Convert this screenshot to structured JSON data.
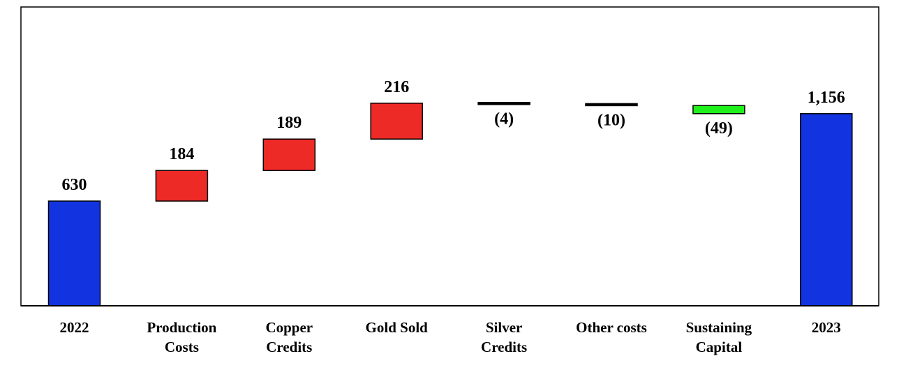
{
  "chart_data": {
    "type": "bar",
    "subtype": "waterfall",
    "title": "",
    "xlabel": "",
    "ylabel": "",
    "ylim": [
      0,
      1400
    ],
    "grid": false,
    "legend": "none",
    "categories": [
      "2022",
      "Production Costs",
      "Copper Credits",
      "Gold Sold",
      "Silver Credits",
      "Other costs",
      "Sustaining Capital",
      "2023"
    ],
    "category_lines": [
      [
        "2022"
      ],
      [
        "Production",
        "Costs"
      ],
      [
        "Copper",
        "Credits"
      ],
      [
        "Gold Sold"
      ],
      [
        "Silver",
        "Credits"
      ],
      [
        "Other costs"
      ],
      [
        "Sustaining",
        "Capital"
      ],
      [
        "2023"
      ]
    ],
    "values": [
      630,
      184,
      189,
      216,
      -4,
      -10,
      -49,
      1156
    ],
    "labels": [
      "630",
      "184",
      "189",
      "216",
      "(4)",
      "(10)",
      "(49)",
      "1,156"
    ],
    "kinds": [
      "total",
      "increase",
      "increase",
      "increase",
      "decrease",
      "decrease",
      "decrease",
      "total"
    ],
    "colors": {
      "total": "#1234e0",
      "increase": "#ee2a27",
      "decrease_small": "#000000",
      "decrease": "#1fef1a",
      "axis": "#000000"
    }
  }
}
